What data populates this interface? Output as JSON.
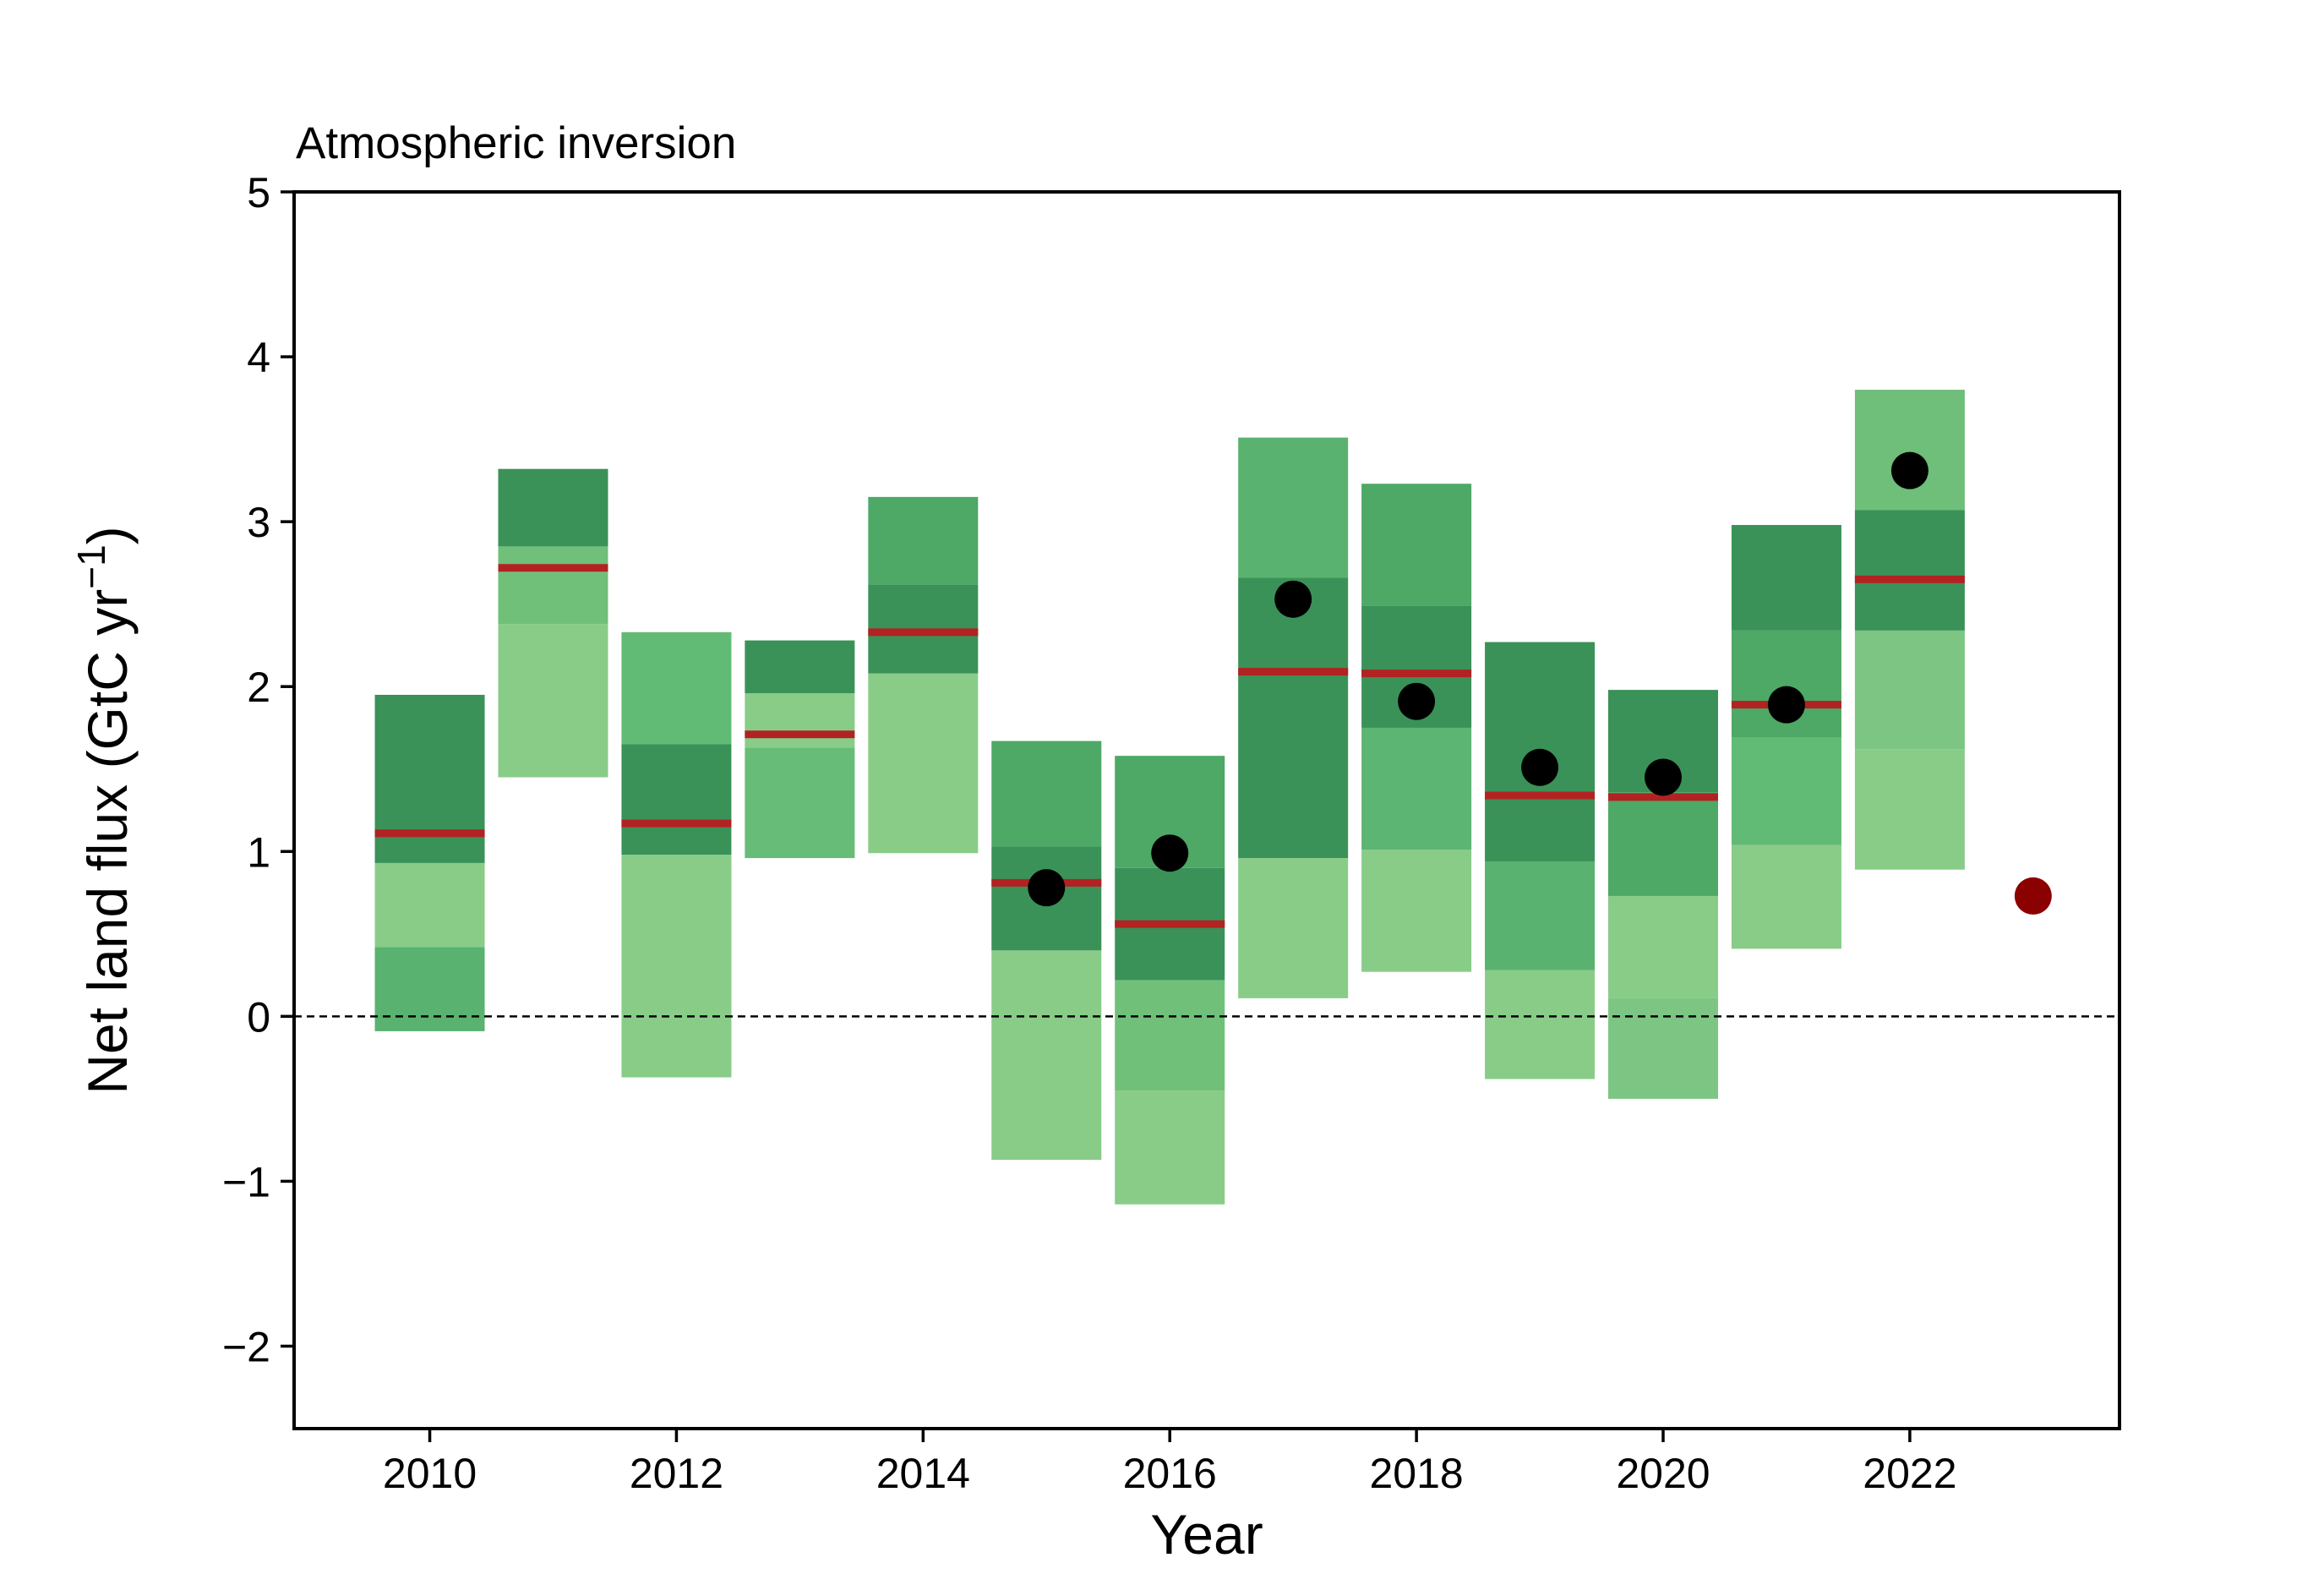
{
  "chart_data": {
    "type": "bar",
    "title": "Atmospheric inversion",
    "xlabel": "Year",
    "ylabel": "Net land flux (GtC yr",
    "ylabel_exponent": "−1",
    "ylabel_suffix": ")",
    "xlim": [
      2008.9,
      2023.7
    ],
    "ylim": [
      -2.5,
      5
    ],
    "x_ticks": [
      2010,
      2012,
      2014,
      2016,
      2018,
      2020,
      2022
    ],
    "x_tick_labels": [
      "2010",
      "2012",
      "2014",
      "2016",
      "2018",
      "2020",
      "2022"
    ],
    "y_ticks": [
      -2,
      -1,
      0,
      1,
      2,
      3,
      4,
      5
    ],
    "y_tick_labels": [
      "−2",
      "−1",
      "0",
      "1",
      "2",
      "3",
      "4",
      "5"
    ],
    "zero_line": 0,
    "grid": false,
    "colors": {
      "median_line": "#b22222",
      "observation_point": "#000000",
      "latest_point": "#8b0000",
      "zero_line": "#000000"
    },
    "years": [
      {
        "year": 2010,
        "median": 1.11,
        "segments": [
          {
            "from": -0.09,
            "to": 0.42,
            "color": "#59b26f"
          },
          {
            "from": 0.42,
            "to": 0.93,
            "color": "#88cc88"
          },
          {
            "from": 0.93,
            "to": 1.95,
            "color": "#3a9258"
          }
        ]
      },
      {
        "year": 2011,
        "median": 2.72,
        "segments": [
          {
            "from": 1.45,
            "to": 2.38,
            "color": "#88cc88"
          },
          {
            "from": 2.38,
            "to": 2.85,
            "color": "#70c07a"
          },
          {
            "from": 2.85,
            "to": 3.32,
            "color": "#3a9258"
          }
        ]
      },
      {
        "year": 2012,
        "median": 1.17,
        "segments": [
          {
            "from": -0.37,
            "to": 0.98,
            "color": "#88cc88"
          },
          {
            "from": 0.98,
            "to": 1.65,
            "color": "#3a9258"
          },
          {
            "from": 1.65,
            "to": 2.33,
            "color": "#62bb75"
          }
        ]
      },
      {
        "year": 2013,
        "median": 1.71,
        "segments": [
          {
            "from": 0.96,
            "to": 1.63,
            "color": "#67bc77"
          },
          {
            "from": 1.63,
            "to": 1.96,
            "color": "#88cc88"
          },
          {
            "from": 1.96,
            "to": 2.28,
            "color": "#3a9258"
          }
        ]
      },
      {
        "year": 2014,
        "median": 2.33,
        "segments": [
          {
            "from": 0.99,
            "to": 2.08,
            "color": "#88cc88"
          },
          {
            "from": 2.08,
            "to": 2.62,
            "color": "#3a9258"
          },
          {
            "from": 2.62,
            "to": 3.15,
            "color": "#4ea866"
          }
        ]
      },
      {
        "year": 2015,
        "median": 0.81,
        "observed": 0.78,
        "segments": [
          {
            "from": -0.87,
            "to": 0.4,
            "color": "#88cc88"
          },
          {
            "from": 0.4,
            "to": 1.03,
            "color": "#3a9258"
          },
          {
            "from": 1.03,
            "to": 1.67,
            "color": "#4ea866"
          }
        ]
      },
      {
        "year": 2016,
        "median": 0.56,
        "observed": 0.99,
        "segments": [
          {
            "from": -1.14,
            "to": -0.45,
            "color": "#88cc88"
          },
          {
            "from": -0.45,
            "to": 0.22,
            "color": "#70c07a"
          },
          {
            "from": 0.22,
            "to": 0.9,
            "color": "#3a9258"
          },
          {
            "from": 0.9,
            "to": 1.58,
            "color": "#4ea866"
          }
        ]
      },
      {
        "year": 2017,
        "median": 2.09,
        "observed": 2.53,
        "segments": [
          {
            "from": 0.11,
            "to": 0.96,
            "color": "#88cc88"
          },
          {
            "from": 0.96,
            "to": 2.66,
            "color": "#3a9258"
          },
          {
            "from": 2.66,
            "to": 3.51,
            "color": "#59b26f"
          }
        ]
      },
      {
        "year": 2018,
        "median": 2.08,
        "observed": 1.91,
        "segments": [
          {
            "from": 0.27,
            "to": 1.01,
            "color": "#88cc88"
          },
          {
            "from": 1.01,
            "to": 1.75,
            "color": "#5cb572"
          },
          {
            "from": 1.75,
            "to": 2.49,
            "color": "#3a9258"
          },
          {
            "from": 2.49,
            "to": 3.23,
            "color": "#4ea866"
          }
        ]
      },
      {
        "year": 2019,
        "median": 1.34,
        "observed": 1.51,
        "segments": [
          {
            "from": -0.38,
            "to": 0.28,
            "color": "#88cc88"
          },
          {
            "from": 0.28,
            "to": 0.94,
            "color": "#59b26f"
          },
          {
            "from": 0.94,
            "to": 2.27,
            "color": "#3a9258"
          }
        ]
      },
      {
        "year": 2020,
        "median": 1.33,
        "observed": 1.45,
        "segments": [
          {
            "from": -0.5,
            "to": 0.11,
            "color": "#7dc583"
          },
          {
            "from": 0.11,
            "to": 0.73,
            "color": "#88cc88"
          },
          {
            "from": 0.73,
            "to": 1.36,
            "color": "#4ea866"
          },
          {
            "from": 1.36,
            "to": 1.98,
            "color": "#3a9258"
          }
        ]
      },
      {
        "year": 2021,
        "median": 1.89,
        "observed": 1.89,
        "segments": [
          {
            "from": 0.41,
            "to": 1.04,
            "color": "#88cc88"
          },
          {
            "from": 1.04,
            "to": 1.69,
            "color": "#62bb75"
          },
          {
            "from": 1.69,
            "to": 2.34,
            "color": "#4ea866"
          },
          {
            "from": 2.34,
            "to": 2.98,
            "color": "#3a9258"
          }
        ]
      },
      {
        "year": 2022,
        "median": 2.65,
        "observed": 3.31,
        "segments": [
          {
            "from": 0.89,
            "to": 1.62,
            "color": "#88cc88"
          },
          {
            "from": 1.62,
            "to": 2.34,
            "color": "#7dc583"
          },
          {
            "from": 2.34,
            "to": 3.07,
            "color": "#3a9258"
          },
          {
            "from": 3.07,
            "to": 3.8,
            "color": "#6fbe79"
          }
        ]
      }
    ],
    "latest_point": {
      "year": 2023,
      "value": 0.73
    }
  }
}
